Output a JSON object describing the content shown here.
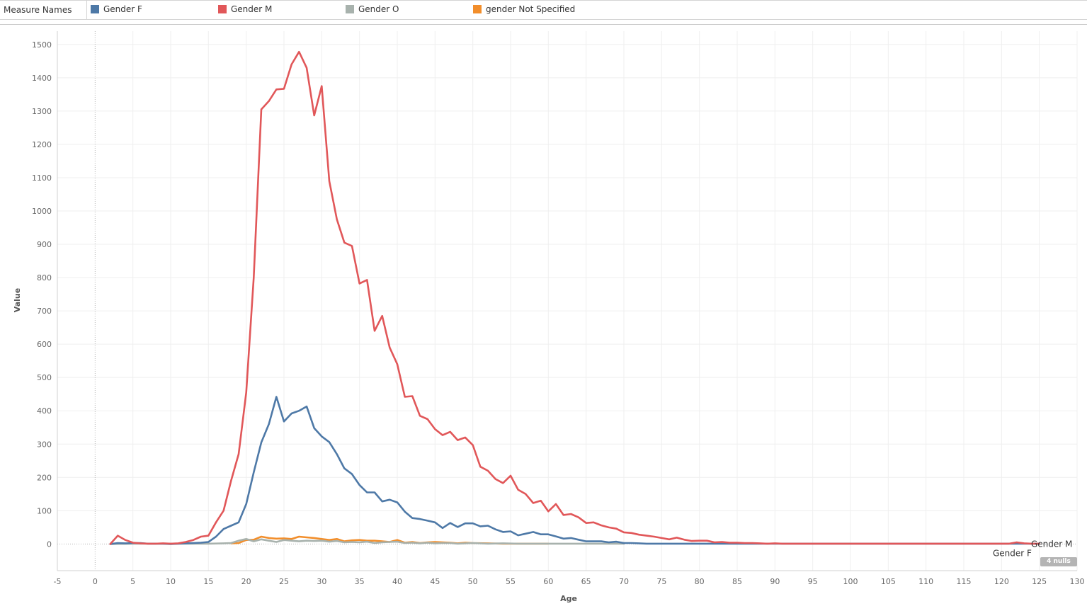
{
  "legend": {
    "title": "Measure Names",
    "items": [
      {
        "label": "Gender F",
        "color": "#4e79a7"
      },
      {
        "label": "Gender M",
        "color": "#e15759"
      },
      {
        "label": "Gender O",
        "color": "#a8b2ad"
      },
      {
        "label": "gender Not Specified",
        "color": "#f28e2b"
      }
    ]
  },
  "nulls_badge": "4 nulls",
  "chart_data": {
    "type": "line",
    "xlabel": "Age",
    "ylabel": "Value",
    "xlim": [
      -5,
      130
    ],
    "ylim": [
      -80,
      1540
    ],
    "x_ticks": [
      -5,
      0,
      5,
      10,
      15,
      20,
      25,
      30,
      35,
      40,
      45,
      50,
      55,
      60,
      65,
      70,
      75,
      80,
      85,
      90,
      95,
      100,
      105,
      110,
      115,
      120,
      125,
      130
    ],
    "y_ticks": [
      0,
      100,
      200,
      300,
      400,
      500,
      600,
      700,
      800,
      900,
      1000,
      1100,
      1200,
      1300,
      1400,
      1500
    ],
    "grid": true,
    "end_labels": [
      "Gender M",
      "Gender F"
    ],
    "series": [
      {
        "name": "Gender M",
        "color": "#e15759",
        "points": [
          [
            2,
            0
          ],
          [
            3,
            25
          ],
          [
            4,
            12
          ],
          [
            5,
            4
          ],
          [
            6,
            2
          ],
          [
            7,
            1
          ],
          [
            8,
            1
          ],
          [
            9,
            2
          ],
          [
            10,
            1
          ],
          [
            11,
            2
          ],
          [
            12,
            6
          ],
          [
            13,
            12
          ],
          [
            14,
            22
          ],
          [
            15,
            25
          ],
          [
            16,
            65
          ],
          [
            17,
            100
          ],
          [
            18,
            190
          ],
          [
            19,
            270
          ],
          [
            20,
            455
          ],
          [
            21,
            800
          ],
          [
            22,
            1305
          ],
          [
            23,
            1330
          ],
          [
            24,
            1365
          ],
          [
            25,
            1367
          ],
          [
            26,
            1440
          ],
          [
            27,
            1478
          ],
          [
            28,
            1430
          ],
          [
            29,
            1287
          ],
          [
            30,
            1375
          ],
          [
            31,
            1090
          ],
          [
            32,
            975
          ],
          [
            33,
            905
          ],
          [
            34,
            895
          ],
          [
            35,
            782
          ],
          [
            36,
            793
          ],
          [
            37,
            640
          ],
          [
            38,
            685
          ],
          [
            39,
            590
          ],
          [
            40,
            540
          ],
          [
            41,
            442
          ],
          [
            42,
            444
          ],
          [
            43,
            385
          ],
          [
            44,
            375
          ],
          [
            45,
            345
          ],
          [
            46,
            327
          ],
          [
            47,
            337
          ],
          [
            48,
            312
          ],
          [
            49,
            320
          ],
          [
            50,
            297
          ],
          [
            51,
            232
          ],
          [
            52,
            220
          ],
          [
            53,
            195
          ],
          [
            54,
            183
          ],
          [
            55,
            205
          ],
          [
            56,
            163
          ],
          [
            57,
            150
          ],
          [
            58,
            123
          ],
          [
            59,
            130
          ],
          [
            60,
            98
          ],
          [
            61,
            120
          ],
          [
            62,
            87
          ],
          [
            63,
            90
          ],
          [
            64,
            80
          ],
          [
            65,
            63
          ],
          [
            66,
            65
          ],
          [
            67,
            56
          ],
          [
            68,
            50
          ],
          [
            69,
            46
          ],
          [
            70,
            35
          ],
          [
            71,
            33
          ],
          [
            72,
            28
          ],
          [
            73,
            25
          ],
          [
            74,
            22
          ],
          [
            75,
            18
          ],
          [
            76,
            14
          ],
          [
            77,
            19
          ],
          [
            78,
            13
          ],
          [
            79,
            9
          ],
          [
            80,
            10
          ],
          [
            81,
            10
          ],
          [
            82,
            5
          ],
          [
            83,
            6
          ],
          [
            84,
            4
          ],
          [
            85,
            4
          ],
          [
            86,
            3
          ],
          [
            87,
            3
          ],
          [
            88,
            2
          ],
          [
            89,
            1
          ],
          [
            90,
            2
          ],
          [
            91,
            1
          ],
          [
            92,
            1
          ],
          [
            93,
            1
          ],
          [
            95,
            1
          ],
          [
            100,
            1
          ],
          [
            105,
            1
          ],
          [
            110,
            1
          ],
          [
            115,
            1
          ],
          [
            120,
            1
          ],
          [
            121,
            1
          ],
          [
            122,
            5
          ],
          [
            123,
            2
          ],
          [
            124,
            1
          ],
          [
            125,
            1
          ]
        ]
      },
      {
        "name": "Gender F",
        "color": "#4e79a7",
        "points": [
          [
            2,
            0
          ],
          [
            3,
            3
          ],
          [
            4,
            2
          ],
          [
            5,
            3
          ],
          [
            6,
            3
          ],
          [
            7,
            1
          ],
          [
            8,
            1
          ],
          [
            9,
            1
          ],
          [
            10,
            0
          ],
          [
            11,
            1
          ],
          [
            12,
            2
          ],
          [
            13,
            3
          ],
          [
            14,
            4
          ],
          [
            15,
            6
          ],
          [
            16,
            22
          ],
          [
            17,
            45
          ],
          [
            18,
            55
          ],
          [
            19,
            65
          ],
          [
            20,
            120
          ],
          [
            21,
            215
          ],
          [
            22,
            305
          ],
          [
            23,
            360
          ],
          [
            24,
            442
          ],
          [
            25,
            368
          ],
          [
            26,
            392
          ],
          [
            27,
            400
          ],
          [
            28,
            413
          ],
          [
            29,
            348
          ],
          [
            30,
            323
          ],
          [
            31,
            306
          ],
          [
            32,
            270
          ],
          [
            33,
            227
          ],
          [
            34,
            210
          ],
          [
            35,
            177
          ],
          [
            36,
            155
          ],
          [
            37,
            155
          ],
          [
            38,
            128
          ],
          [
            39,
            133
          ],
          [
            40,
            125
          ],
          [
            41,
            97
          ],
          [
            42,
            78
          ],
          [
            43,
            75
          ],
          [
            44,
            70
          ],
          [
            45,
            65
          ],
          [
            46,
            48
          ],
          [
            47,
            63
          ],
          [
            48,
            51
          ],
          [
            49,
            62
          ],
          [
            50,
            62
          ],
          [
            51,
            53
          ],
          [
            52,
            55
          ],
          [
            53,
            44
          ],
          [
            54,
            36
          ],
          [
            55,
            38
          ],
          [
            56,
            26
          ],
          [
            57,
            31
          ],
          [
            58,
            36
          ],
          [
            59,
            29
          ],
          [
            60,
            29
          ],
          [
            61,
            23
          ],
          [
            62,
            16
          ],
          [
            63,
            18
          ],
          [
            64,
            13
          ],
          [
            65,
            8
          ],
          [
            66,
            8
          ],
          [
            67,
            8
          ],
          [
            68,
            5
          ],
          [
            69,
            7
          ],
          [
            70,
            3
          ],
          [
            71,
            3
          ],
          [
            72,
            2
          ],
          [
            73,
            1
          ],
          [
            75,
            1
          ],
          [
            78,
            1
          ],
          [
            80,
            1
          ],
          [
            85,
            1
          ],
          [
            90,
            1
          ],
          [
            95,
            1
          ],
          [
            100,
            1
          ],
          [
            110,
            1
          ],
          [
            115,
            1
          ],
          [
            120,
            1
          ],
          [
            125,
            1
          ]
        ]
      },
      {
        "name": "Gender O",
        "color": "#a8b2ad",
        "points": [
          [
            2,
            0
          ],
          [
            5,
            1
          ],
          [
            10,
            1
          ],
          [
            15,
            1
          ],
          [
            17,
            2
          ],
          [
            18,
            3
          ],
          [
            19,
            10
          ],
          [
            20,
            15
          ],
          [
            21,
            8
          ],
          [
            22,
            14
          ],
          [
            23,
            10
          ],
          [
            24,
            6
          ],
          [
            25,
            12
          ],
          [
            26,
            10
          ],
          [
            27,
            8
          ],
          [
            28,
            10
          ],
          [
            29,
            9
          ],
          [
            30,
            10
          ],
          [
            31,
            7
          ],
          [
            32,
            9
          ],
          [
            33,
            5
          ],
          [
            34,
            6
          ],
          [
            35,
            5
          ],
          [
            36,
            7
          ],
          [
            37,
            3
          ],
          [
            38,
            5
          ],
          [
            39,
            6
          ],
          [
            40,
            7
          ],
          [
            41,
            3
          ],
          [
            42,
            4
          ],
          [
            43,
            2
          ],
          [
            44,
            4
          ],
          [
            45,
            2
          ],
          [
            46,
            3
          ],
          [
            47,
            3
          ],
          [
            48,
            1
          ],
          [
            49,
            2
          ],
          [
            50,
            3
          ],
          [
            52,
            1
          ],
          [
            54,
            2
          ],
          [
            56,
            1
          ],
          [
            58,
            1
          ],
          [
            60,
            1
          ],
          [
            65,
            1
          ],
          [
            70,
            1
          ]
        ]
      },
      {
        "name": "gender Not Specified",
        "color": "#f28e2b",
        "points": [
          [
            18,
            2
          ],
          [
            19,
            3
          ],
          [
            20,
            12
          ],
          [
            21,
            13
          ],
          [
            22,
            22
          ],
          [
            23,
            18
          ],
          [
            24,
            16
          ],
          [
            25,
            17
          ],
          [
            26,
            15
          ],
          [
            27,
            22
          ],
          [
            28,
            20
          ],
          [
            29,
            18
          ],
          [
            30,
            15
          ],
          [
            31,
            12
          ],
          [
            32,
            15
          ],
          [
            33,
            8
          ],
          [
            34,
            11
          ],
          [
            35,
            12
          ],
          [
            36,
            10
          ],
          [
            37,
            10
          ],
          [
            38,
            8
          ],
          [
            39,
            6
          ],
          [
            40,
            12
          ],
          [
            41,
            4
          ],
          [
            42,
            6
          ],
          [
            43,
            3
          ],
          [
            44,
            5
          ],
          [
            45,
            6
          ],
          [
            46,
            5
          ],
          [
            47,
            4
          ],
          [
            48,
            2
          ],
          [
            49,
            4
          ],
          [
            50,
            3
          ],
          [
            52,
            2
          ],
          [
            54,
            1
          ],
          [
            56,
            1
          ],
          [
            60,
            1
          ]
        ]
      }
    ]
  }
}
